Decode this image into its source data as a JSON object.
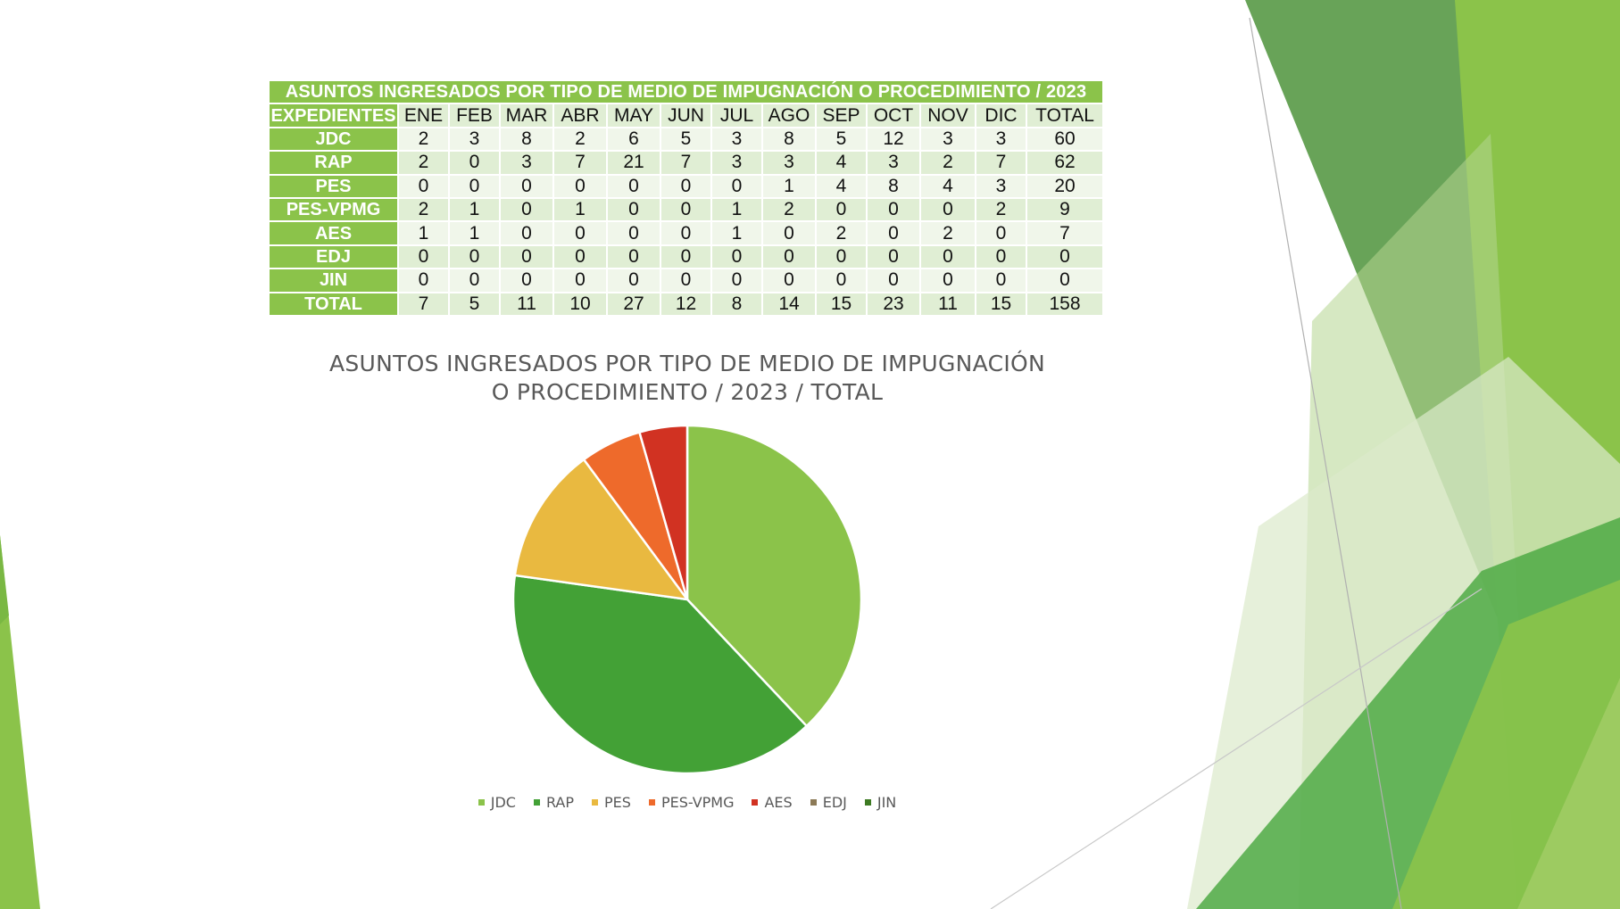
{
  "table": {
    "title": "ASUNTOS INGRESADOS POR TIPO DE MEDIO DE IMPUGNACIÓN O PROCEDIMIENTO / 2023",
    "header": [
      "EXPEDIENTES",
      "ENE",
      "FEB",
      "MAR",
      "ABR",
      "MAY",
      "JUN",
      "JUL",
      "AGO",
      "SEP",
      "OCT",
      "NOV",
      "DIC",
      "TOTAL"
    ],
    "rows": [
      {
        "label": "JDC",
        "values": [
          "2",
          "3",
          "8",
          "2",
          "6",
          "5",
          "3",
          "8",
          "5",
          "12",
          "3",
          "3",
          "60"
        ]
      },
      {
        "label": "RAP",
        "values": [
          "2",
          "0",
          "3",
          "7",
          "21",
          "7",
          "3",
          "3",
          "4",
          "3",
          "2",
          "7",
          "62"
        ]
      },
      {
        "label": "PES",
        "values": [
          "0",
          "0",
          "0",
          "0",
          "0",
          "0",
          "0",
          "1",
          "4",
          "8",
          "4",
          "3",
          "20"
        ]
      },
      {
        "label": "PES-VPMG",
        "values": [
          "2",
          "1",
          "0",
          "1",
          "0",
          "0",
          "1",
          "2",
          "0",
          "0",
          "0",
          "2",
          "9"
        ]
      },
      {
        "label": "AES",
        "values": [
          "1",
          "1",
          "0",
          "0",
          "0",
          "0",
          "1",
          "0",
          "2",
          "0",
          "2",
          "0",
          "7"
        ]
      },
      {
        "label": "EDJ",
        "values": [
          "0",
          "0",
          "0",
          "0",
          "0",
          "0",
          "0",
          "0",
          "0",
          "0",
          "0",
          "0",
          "0"
        ]
      },
      {
        "label": "JIN",
        "values": [
          "0",
          "0",
          "0",
          "0",
          "0",
          "0",
          "0",
          "0",
          "0",
          "0",
          "0",
          "0",
          "0"
        ]
      },
      {
        "label": "TOTAL",
        "values": [
          "7",
          "5",
          "11",
          "10",
          "27",
          "12",
          "8",
          "14",
          "15",
          "23",
          "11",
          "15",
          "158"
        ]
      }
    ]
  },
  "chart_data": {
    "type": "pie",
    "title": "ASUNTOS INGRESADOS POR TIPO DE MEDIO DE IMPUGNACIÓN O PROCEDIMIENTO / 2023 / TOTAL",
    "title_lines": [
      "ASUNTOS INGRESADOS POR TIPO DE MEDIO DE IMPUGNACIÓN",
      "O PROCEDIMIENTO / 2023 / TOTAL"
    ],
    "categories": [
      "JDC",
      "RAP",
      "PES",
      "PES-VPMG",
      "AES",
      "EDJ",
      "JIN"
    ],
    "values": [
      60,
      62,
      20,
      9,
      7,
      0,
      0
    ],
    "colors": [
      "#8bc34a",
      "#43a136",
      "#e9b940",
      "#ee6a2b",
      "#d13222",
      "#8c7a57",
      "#3d7a22"
    ],
    "legend": "bottom"
  }
}
